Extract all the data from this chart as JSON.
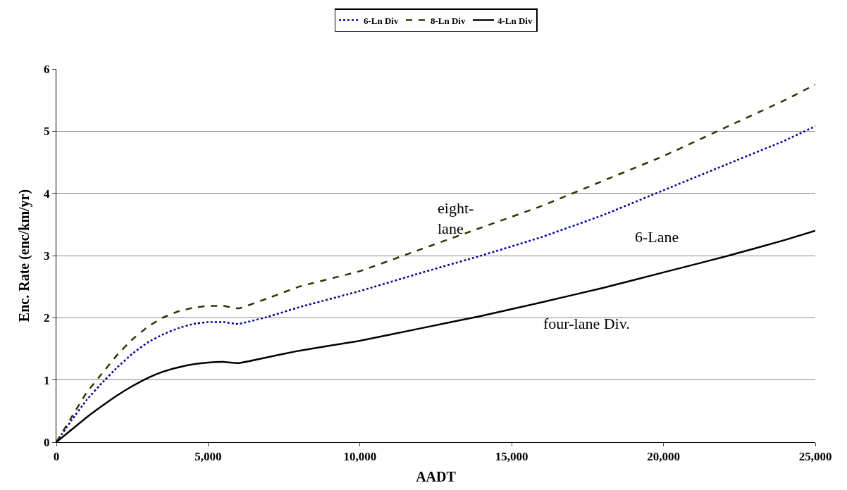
{
  "chart_data": {
    "type": "line",
    "xlabel": "AADT",
    "ylabel": "Enc. Rate (enc/km/yr)",
    "x": [
      0,
      500,
      1000,
      1500,
      2000,
      2500,
      3000,
      3500,
      4000,
      4500,
      5000,
      5500,
      6000,
      7000,
      8000,
      10000,
      12000,
      14000,
      16000,
      18000,
      20000,
      22000,
      24000,
      25000
    ],
    "series": [
      {
        "name": "6-Ln Div",
        "color": "#000099",
        "line_style": "dotted",
        "values": [
          0,
          0.35,
          0.68,
          0.95,
          1.2,
          1.42,
          1.6,
          1.73,
          1.83,
          1.9,
          1.93,
          1.93,
          1.9,
          2.02,
          2.17,
          2.43,
          2.72,
          3.0,
          3.3,
          3.65,
          4.05,
          4.45,
          4.85,
          5.08
        ]
      },
      {
        "name": "8-Ln Div",
        "color": "#333300",
        "line_style": "dashed",
        "values": [
          0,
          0.4,
          0.8,
          1.1,
          1.4,
          1.65,
          1.85,
          2.0,
          2.1,
          2.16,
          2.19,
          2.19,
          2.15,
          2.32,
          2.5,
          2.75,
          3.1,
          3.45,
          3.8,
          4.2,
          4.6,
          5.05,
          5.5,
          5.75
        ]
      },
      {
        "name": "4-Ln Div",
        "color": "#000000",
        "line_style": "solid",
        "values": [
          0,
          0.2,
          0.4,
          0.58,
          0.75,
          0.9,
          1.03,
          1.13,
          1.2,
          1.25,
          1.28,
          1.29,
          1.27,
          1.37,
          1.47,
          1.63,
          1.83,
          2.03,
          2.25,
          2.48,
          2.73,
          2.98,
          3.25,
          3.4
        ]
      }
    ],
    "xlim": [
      0,
      25000
    ],
    "xticks": [
      {
        "value": 0,
        "label": "0"
      },
      {
        "value": 5000,
        "label": "5,000"
      },
      {
        "value": 10000,
        "label": "10,000"
      },
      {
        "value": 15000,
        "label": "15,000"
      },
      {
        "value": 20000,
        "label": "20,000"
      },
      {
        "value": 25000,
        "label": "25,000"
      }
    ],
    "ylim": [
      0,
      6
    ],
    "yticks": [
      0,
      1,
      2,
      3,
      4,
      5,
      6
    ],
    "grid": "y",
    "legend": "top",
    "marker": "none",
    "annotations": [
      "eight-\nlane",
      "6-Lane",
      "four-lane Div."
    ]
  }
}
